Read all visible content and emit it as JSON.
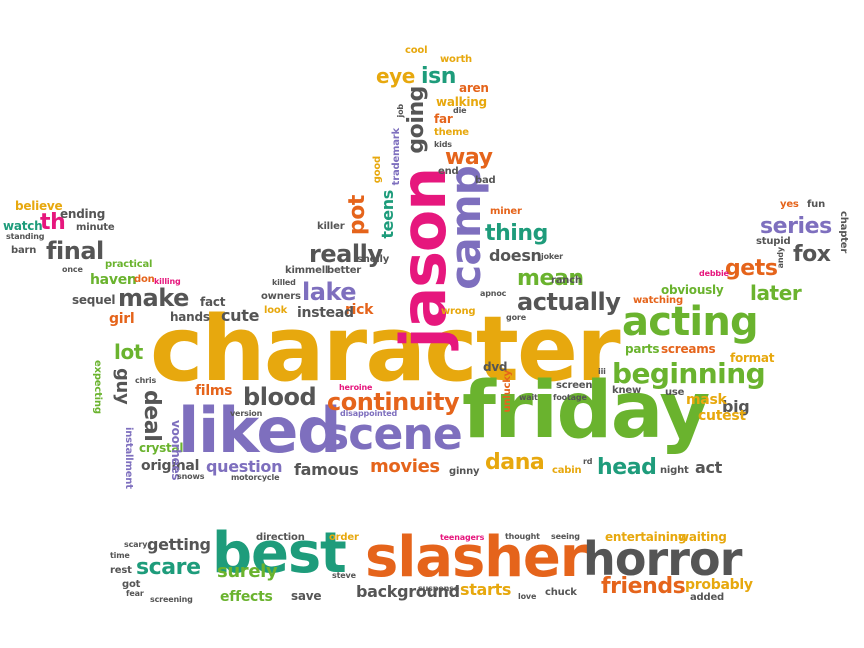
{
  "colors": {
    "gold": "#e7a80e",
    "orange": "#e5641b",
    "green": "#6ab32e",
    "purple": "#7e6fbe",
    "teal": "#1e9c7b",
    "gray": "#555555",
    "pink": "#e6177d"
  },
  "words": [
    {
      "text": "character",
      "color": "gold"
    },
    {
      "text": "friday",
      "color": "green"
    },
    {
      "text": "liked",
      "color": "purple"
    },
    {
      "text": "scene",
      "color": "purple"
    },
    {
      "text": "acting",
      "color": "green"
    },
    {
      "text": "jason",
      "color": "pink"
    },
    {
      "text": "camp",
      "color": "purple"
    },
    {
      "text": "best",
      "color": "teal"
    },
    {
      "text": "slasher",
      "color": "orange"
    },
    {
      "text": "horror",
      "color": "gray"
    },
    {
      "text": "beginning",
      "color": "green"
    },
    {
      "text": "continuity",
      "color": "orange"
    },
    {
      "text": "blood",
      "color": "gray"
    },
    {
      "text": "really",
      "color": "gray"
    },
    {
      "text": "actually",
      "color": "gray"
    },
    {
      "text": "thing",
      "color": "teal"
    },
    {
      "text": "mean",
      "color": "green"
    },
    {
      "text": "lake",
      "color": "purple"
    },
    {
      "text": "make",
      "color": "gray"
    },
    {
      "text": "final",
      "color": "gray"
    },
    {
      "text": "th",
      "color": "pink"
    },
    {
      "text": "series",
      "color": "purple"
    },
    {
      "text": "fox",
      "color": "gray"
    },
    {
      "text": "gets",
      "color": "orange"
    },
    {
      "text": "later",
      "color": "green"
    },
    {
      "text": "way",
      "color": "orange"
    },
    {
      "text": "going",
      "color": "gray"
    },
    {
      "text": "isn",
      "color": "teal"
    },
    {
      "text": "eye",
      "color": "gold"
    },
    {
      "text": "pot",
      "color": "orange"
    },
    {
      "text": "teens",
      "color": "teal"
    },
    {
      "text": "head",
      "color": "teal"
    },
    {
      "text": "dana",
      "color": "gold"
    },
    {
      "text": "movies",
      "color": "orange"
    },
    {
      "text": "famous",
      "color": "gray"
    },
    {
      "text": "question",
      "color": "purple"
    },
    {
      "text": "original",
      "color": "gray"
    },
    {
      "text": "scare",
      "color": "teal"
    },
    {
      "text": "surely",
      "color": "green"
    },
    {
      "text": "friends",
      "color": "orange"
    },
    {
      "text": "background",
      "color": "gray"
    },
    {
      "text": "starts",
      "color": "gold"
    },
    {
      "text": "getting",
      "color": "gray"
    },
    {
      "text": "lot",
      "color": "green"
    },
    {
      "text": "cute",
      "color": "gray"
    },
    {
      "text": "girl",
      "color": "orange"
    },
    {
      "text": "films",
      "color": "orange"
    },
    {
      "text": "doesn",
      "color": "gray"
    },
    {
      "text": "haven",
      "color": "green"
    },
    {
      "text": "big",
      "color": "gray"
    },
    {
      "text": "act",
      "color": "gray"
    },
    {
      "text": "mask",
      "color": "gold"
    },
    {
      "text": "deal",
      "color": "gray"
    },
    {
      "text": "guy",
      "color": "gray"
    },
    {
      "text": "rick",
      "color": "orange"
    },
    {
      "text": "instead",
      "color": "gray"
    },
    {
      "text": "dvd",
      "color": "gray"
    },
    {
      "text": "probably",
      "color": "gold"
    },
    {
      "text": "effects",
      "color": "green"
    },
    {
      "text": "save",
      "color": "gray"
    },
    {
      "text": "entertaining",
      "color": "gold"
    },
    {
      "text": "waiting",
      "color": "gold"
    },
    {
      "text": "cutest",
      "color": "gold"
    },
    {
      "text": "parts",
      "color": "green"
    },
    {
      "text": "screams",
      "color": "orange"
    },
    {
      "text": "format",
      "color": "gold"
    },
    {
      "text": "obviously",
      "color": "green"
    },
    {
      "text": "watching",
      "color": "orange"
    },
    {
      "text": "believe",
      "color": "gold"
    },
    {
      "text": "ending",
      "color": "gray"
    },
    {
      "text": "watch",
      "color": "teal"
    },
    {
      "text": "minute",
      "color": "gray"
    },
    {
      "text": "standing",
      "color": "gray"
    },
    {
      "text": "barn",
      "color": "gray"
    },
    {
      "text": "practical",
      "color": "green"
    },
    {
      "text": "sequel",
      "color": "gray"
    },
    {
      "text": "hands",
      "color": "gray"
    },
    {
      "text": "fact",
      "color": "gray"
    },
    {
      "text": "owners",
      "color": "gray"
    },
    {
      "text": "look",
      "color": "gold"
    },
    {
      "text": "kimmell",
      "color": "gray"
    },
    {
      "text": "better",
      "color": "gray"
    },
    {
      "text": "shelly",
      "color": "gray"
    },
    {
      "text": "killed",
      "color": "gray"
    },
    {
      "text": "killer",
      "color": "gray"
    },
    {
      "text": "don",
      "color": "orange"
    },
    {
      "text": "killing",
      "color": "pink"
    },
    {
      "text": "once",
      "color": "gray"
    },
    {
      "text": "expecting",
      "color": "green"
    },
    {
      "text": "knew",
      "color": "gray"
    },
    {
      "text": "use",
      "color": "gray"
    },
    {
      "text": "crystal",
      "color": "green"
    },
    {
      "text": "voorhees",
      "color": "purple"
    },
    {
      "text": "chris",
      "color": "gray"
    },
    {
      "text": "installment",
      "color": "purple"
    },
    {
      "text": "snows",
      "color": "gray"
    },
    {
      "text": "motorcycle",
      "color": "gray"
    },
    {
      "text": "version",
      "color": "gray"
    },
    {
      "text": "heroine",
      "color": "pink"
    },
    {
      "text": "disappointed",
      "color": "purple"
    },
    {
      "text": "unlucky",
      "color": "orange"
    },
    {
      "text": "wait",
      "color": "gray"
    },
    {
      "text": "screen",
      "color": "gray"
    },
    {
      "text": "footage",
      "color": "gray"
    },
    {
      "text": "cabin",
      "color": "gold"
    },
    {
      "text": "rd",
      "color": "gray"
    },
    {
      "text": "ginny",
      "color": "gray"
    },
    {
      "text": "night",
      "color": "gray"
    },
    {
      "text": "ranch",
      "color": "gray"
    },
    {
      "text": "joker",
      "color": "gray"
    },
    {
      "text": "miner",
      "color": "orange"
    },
    {
      "text": "bad",
      "color": "gray"
    },
    {
      "text": "end",
      "color": "gray"
    },
    {
      "text": "theme",
      "color": "gold"
    },
    {
      "text": "kids",
      "color": "gray"
    },
    {
      "text": "far",
      "color": "orange"
    },
    {
      "text": "walking",
      "color": "gold"
    },
    {
      "text": "aren",
      "color": "orange"
    },
    {
      "text": "die",
      "color": "gray"
    },
    {
      "text": "worth",
      "color": "gold"
    },
    {
      "text": "cool",
      "color": "gold"
    },
    {
      "text": "job",
      "color": "gray"
    },
    {
      "text": "trademark",
      "color": "purple"
    },
    {
      "text": "good",
      "color": "gold"
    },
    {
      "text": "wrong",
      "color": "gold"
    },
    {
      "text": "apnoc",
      "color": "gray"
    },
    {
      "text": "gore",
      "color": "gray"
    },
    {
      "text": "iii",
      "color": "gray"
    },
    {
      "text": "stupid",
      "color": "gray"
    },
    {
      "text": "debbie",
      "color": "pink"
    },
    {
      "text": "andy",
      "color": "gray"
    },
    {
      "text": "yes",
      "color": "orange"
    },
    {
      "text": "fun",
      "color": "gray"
    },
    {
      "text": "chapter",
      "color": "gray"
    },
    {
      "text": "direction",
      "color": "gray"
    },
    {
      "text": "order",
      "color": "gold"
    },
    {
      "text": "teenagers",
      "color": "pink"
    },
    {
      "text": "thought",
      "color": "gray"
    },
    {
      "text": "seeing",
      "color": "gray"
    },
    {
      "text": "scary",
      "color": "gray"
    },
    {
      "text": "time",
      "color": "gray"
    },
    {
      "text": "rest",
      "color": "gray"
    },
    {
      "text": "got",
      "color": "gray"
    },
    {
      "text": "fear",
      "color": "gray"
    },
    {
      "text": "screening",
      "color": "gray"
    },
    {
      "text": "steve",
      "color": "gray"
    },
    {
      "text": "suspense",
      "color": "gray"
    },
    {
      "text": "love",
      "color": "gray"
    },
    {
      "text": "chuck",
      "color": "gray"
    },
    {
      "text": "added",
      "color": "gray"
    }
  ]
}
